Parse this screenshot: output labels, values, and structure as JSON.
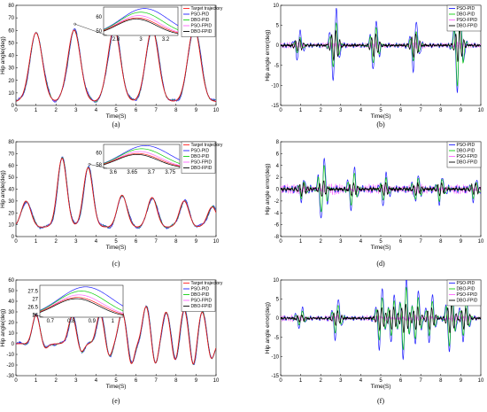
{
  "colors": {
    "target": "#ff2020",
    "pso_pid": "#2020ff",
    "dbo_pid": "#10d010",
    "pso_fpid": "#ff66ff",
    "dbo_fpid": "#000000"
  },
  "chart_data": [
    {
      "id": "a",
      "caption": "(a)",
      "type": "line",
      "xlabel": "Time(S)",
      "ylabel": "Hip angle(deg)",
      "xlim": [
        0,
        10
      ],
      "ylim": [
        0,
        80
      ],
      "xticks": [
        "0",
        "1",
        "2",
        "3",
        "4",
        "5",
        "6",
        "7",
        "8",
        "9",
        "10"
      ],
      "yticks": [
        "0",
        "10",
        "20",
        "30",
        "40",
        "50",
        "60",
        "70",
        "80"
      ],
      "grid": false,
      "legend_position": "top-right",
      "legend": [
        "Target trajectory",
        "PSO-PID",
        "DBO-PID",
        "PSO-FPID",
        "DBO-FPID"
      ],
      "signal": {
        "baseline": 3,
        "peak_times": [
          1.0,
          2.9,
          4.9,
          6.8,
          8.9
        ],
        "peak_values": [
          58,
          60,
          61,
          61,
          62
        ],
        "half_width": 0.6
      },
      "inset": {
        "xlim": [
          2.7,
          3.2
        ],
        "ylim": [
          50,
          65
        ],
        "xticks": [
          "2.8",
          "3",
          "3.2"
        ],
        "yticks": [
          "50",
          "60"
        ]
      }
    },
    {
      "id": "b",
      "caption": "(b)",
      "type": "line",
      "xlabel": "Time(S)",
      "ylabel": "Hip angle error(deg)",
      "xlim": [
        0,
        10
      ],
      "ylim": [
        -15,
        10
      ],
      "xticks": [
        "0",
        "1",
        "2",
        "3",
        "4",
        "5",
        "6",
        "7",
        "8",
        "9",
        "10"
      ],
      "yticks": [
        "-15",
        "-10",
        "-5",
        "0",
        "5",
        "10"
      ],
      "grid": false,
      "legend_position": "top-right",
      "legend": [
        "PSO-PID",
        "DBO-PID",
        "PSO-FPID",
        "DBO-FPID"
      ],
      "error": {
        "event_times": [
          0.9,
          2.7,
          4.7,
          6.7,
          8.9
        ],
        "pso_pid_amplitude": [
          4,
          10,
          7,
          7,
          13
        ],
        "dbo_pid_amplitude": [
          2,
          6,
          5,
          4,
          11
        ],
        "dbo_fpid_amplitude": [
          1.5,
          4,
          3,
          3,
          4
        ]
      }
    },
    {
      "id": "c",
      "caption": "(c)",
      "type": "line",
      "xlabel": "Time(S)",
      "ylabel": "Hip angle(deg)",
      "xlim": [
        0,
        10
      ],
      "ylim": [
        0,
        80
      ],
      "xticks": [
        "0",
        "1",
        "2",
        "3",
        "4",
        "5",
        "6",
        "7",
        "8",
        "9",
        "10"
      ],
      "yticks": [
        "0",
        "10",
        "20",
        "30",
        "40",
        "50",
        "60",
        "70",
        "80"
      ],
      "grid": false,
      "legend_position": "top-right",
      "legend": [
        "Target trajectory",
        "PSO-PID",
        "DBO-PID",
        "PSO-FPID",
        "DBO-FPID"
      ],
      "signal": {
        "baseline": 8,
        "peak_times": [
          0.5,
          2.3,
          3.6,
          5.3,
          6.8,
          8.4,
          9.8
        ],
        "peak_values": [
          30,
          66,
          58,
          35,
          33,
          30,
          25
        ],
        "half_width": 0.45
      },
      "inset": {
        "xlim": [
          3.6,
          3.75
        ],
        "ylim": [
          57,
          61
        ],
        "xticks": [
          "3.6",
          "3.65",
          "3.7",
          "3.75"
        ],
        "yticks": [
          "58",
          "60"
        ]
      }
    },
    {
      "id": "d",
      "caption": "(d)",
      "type": "line",
      "xlabel": "Time(S)",
      "ylabel": "Hip angle error(deg)",
      "xlim": [
        0,
        10
      ],
      "ylim": [
        -8,
        8
      ],
      "xticks": [
        "0",
        "1",
        "2",
        "3",
        "4",
        "5",
        "6",
        "7",
        "8",
        "9",
        "10"
      ],
      "yticks": [
        "-8",
        "-6",
        "-4",
        "-2",
        "0",
        "2",
        "4",
        "6",
        "8"
      ],
      "grid": false,
      "legend_position": "top-right",
      "legend": [
        "PSO-PID",
        "DBO-PID",
        "PSO-FPID",
        "DBO-FPID"
      ],
      "error": {
        "event_times": [
          1.1,
          2.1,
          3.6,
          5.2,
          6.8,
          8.0,
          9.7
        ],
        "pso_pid_amplitude": [
          2,
          6,
          4,
          3,
          2.5,
          2.5,
          2
        ],
        "dbo_pid_amplitude": [
          1.5,
          4.5,
          3,
          2,
          2,
          2,
          1.5
        ],
        "dbo_fpid_amplitude": [
          1,
          1.5,
          1.2,
          1,
          1,
          1,
          1
        ]
      }
    },
    {
      "id": "e",
      "caption": "(e)",
      "type": "line",
      "xlabel": "Time(S)",
      "ylabel": "Hip angle(deg)",
      "xlim": [
        0,
        10
      ],
      "ylim": [
        -30,
        60
      ],
      "xticks": [
        "0",
        "1",
        "2",
        "3",
        "4",
        "5",
        "6",
        "7",
        "8",
        "9",
        "10"
      ],
      "yticks": [
        "-30",
        "-20",
        "-10",
        "0",
        "10",
        "20",
        "30",
        "40",
        "50",
        "60"
      ],
      "grid": false,
      "legend_position": "top-right",
      "legend": [
        "Target trajectory",
        "PSO-PID",
        "DBO-PID",
        "PSO-FPID",
        "DBO-FPID"
      ],
      "signal": {
        "baseline": 0,
        "peak_times": [
          1.0,
          2.8,
          4.2,
          5.3,
          6.5,
          7.5,
          8.4,
          9.3
        ],
        "peak_values": [
          27,
          26,
          28,
          30,
          35,
          30,
          32,
          30
        ],
        "trough_values": [
          -5,
          -8,
          -12,
          -20,
          -20,
          -18,
          -22,
          -15
        ],
        "half_width": 0.35
      },
      "inset": {
        "xlim": [
          0.7,
          1.1
        ],
        "ylim": [
          26,
          27.5
        ],
        "xticks": [
          "0.7",
          "0.8",
          "0.9",
          "1"
        ],
        "yticks": [
          "26",
          "26.5",
          "27",
          "27.5"
        ]
      }
    },
    {
      "id": "f",
      "caption": "(f)",
      "type": "line",
      "xlabel": "Time(S)",
      "ylabel": "Hip angle error(deg)",
      "xlim": [
        0,
        10
      ],
      "ylim": [
        -15,
        10
      ],
      "xticks": [
        "0",
        "1",
        "2",
        "3",
        "4",
        "5",
        "6",
        "7",
        "8",
        "9",
        "10"
      ],
      "yticks": [
        "-15",
        "-10",
        "-5",
        "0",
        "5",
        "10"
      ],
      "grid": false,
      "legend_position": "top-right",
      "legend": [
        "PSO-PID",
        "DBO-PID",
        "PSO-FPID",
        "DBO-FPID"
      ],
      "error": {
        "event_times": [
          1.0,
          2.8,
          5.0,
          5.6,
          6.2,
          6.8,
          7.5,
          8.5,
          9.2
        ],
        "pso_pid_amplitude": [
          3,
          6,
          9,
          7,
          12,
          8,
          7,
          10,
          7
        ],
        "dbo_pid_amplitude": [
          2,
          4,
          6,
          5,
          9,
          6,
          5,
          8,
          5
        ],
        "dbo_fpid_amplitude": [
          1,
          2,
          3,
          3,
          4,
          3,
          3,
          4,
          3
        ]
      }
    }
  ]
}
